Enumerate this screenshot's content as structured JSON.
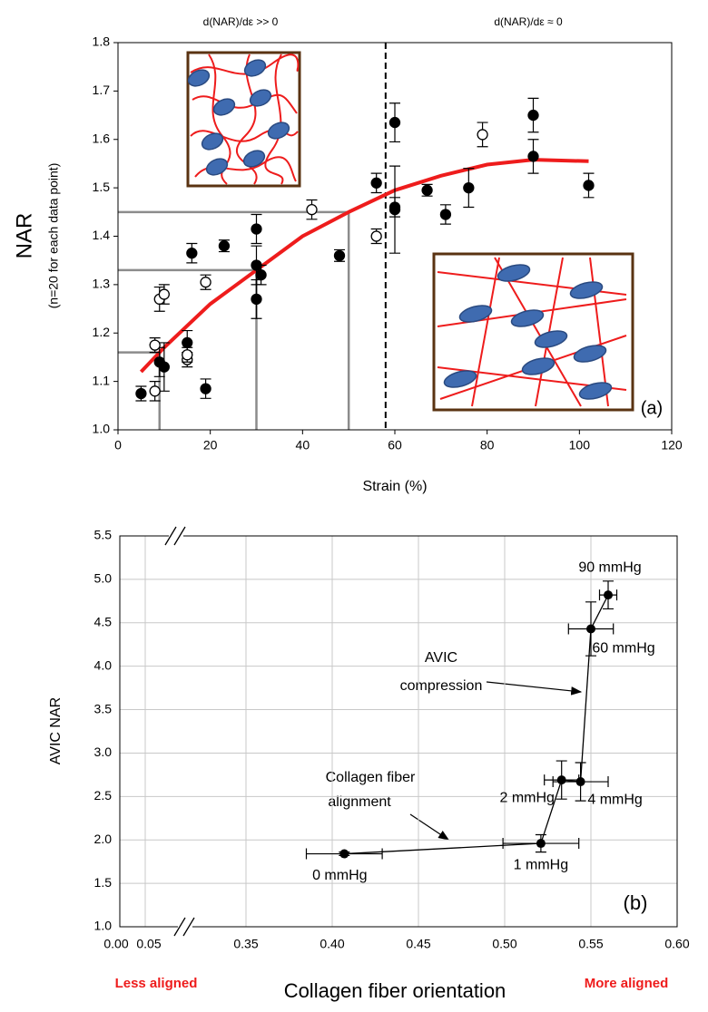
{
  "chart_data": [
    {
      "type": "scatter",
      "xlabel": "Strain (%)",
      "ylabel": "NAR",
      "ylabel_sub": "(n=20 for each data point)",
      "panel_label": "(a)",
      "annotations": [
        "d(NAR)/dε >> 0",
        "d(NAR)/dε ≈ 0"
      ],
      "xlim": [
        0,
        120
      ],
      "xticks": [
        0,
        20,
        40,
        60,
        80,
        100,
        120
      ],
      "ylim": [
        1.0,
        1.8
      ],
      "yticks": [
        {
          "value": 1.0,
          "label": "1.0"
        },
        1.1,
        1.2,
        1.3,
        1.4,
        1.5,
        1.6,
        1.7,
        {
          "value": 1.8,
          "label": "1.8"
        }
      ],
      "series": [
        {
          "marker": "filled",
          "color": "#000000",
          "x": [
            5,
            9,
            10,
            15,
            16,
            19,
            23,
            30,
            30,
            30,
            31,
            48,
            56,
            60,
            60,
            60,
            67,
            71,
            76,
            90,
            90,
            102
          ],
          "values": [
            1.075,
            1.14,
            1.13,
            1.18,
            1.365,
            1.085,
            1.38,
            1.415,
            1.34,
            1.27,
            1.32,
            1.36,
            1.51,
            1.635,
            1.46,
            1.455,
            1.495,
            1.445,
            1.5,
            1.65,
            1.565,
            1.505
          ],
          "errors": [
            0.015,
            0.03,
            0.05,
            0.025,
            0.02,
            0.02,
            0.012,
            0.03,
            0.04,
            0.04,
            0.02,
            0.012,
            0.02,
            0.04,
            0.02,
            0.09,
            0.012,
            0.02,
            0.04,
            0.035,
            0.035,
            0.025
          ]
        },
        {
          "marker": "open",
          "color": "#000000",
          "x": [
            8,
            8,
            9,
            10,
            15,
            15,
            19,
            42,
            56,
            79
          ],
          "values": [
            1.175,
            1.08,
            1.27,
            1.28,
            1.145,
            1.155,
            1.305,
            1.455,
            1.4,
            1.61
          ],
          "errors": [
            0.015,
            0.02,
            0.025,
            0.02,
            0.015,
            0.015,
            0.015,
            0.02,
            0.015,
            0.025
          ]
        }
      ],
      "fit": {
        "color": "#ee1c1c",
        "x": [
          5,
          10,
          20,
          30,
          40,
          50,
          60,
          70,
          80,
          90,
          102
        ],
        "values": [
          1.12,
          1.17,
          1.26,
          1.33,
          1.4,
          1.45,
          1.495,
          1.525,
          1.548,
          1.558,
          1.555
        ]
      },
      "guides": {
        "color": "#8c8c8c",
        "x": [
          9,
          30,
          50
        ],
        "values": [
          1.16,
          1.33,
          1.45
        ]
      },
      "vline": 58
    },
    {
      "type": "line",
      "xlabel": "Collagen fiber orientation",
      "ylabel": "AVIC NAR",
      "panel_label": "(b)",
      "xlabel_left": "Less aligned",
      "xlabel_right": "More aligned",
      "annotations": [
        [
          "AVIC",
          "compression"
        ],
        [
          "Collagen fiber",
          "alignment"
        ]
      ],
      "xlim": [
        0,
        0.6
      ],
      "xbreak": [
        0.05,
        0.35
      ],
      "xticks": [
        {
          "value": 0,
          "label": "0.00"
        },
        {
          "value": 0.05,
          "label": "0.05"
        },
        0.35,
        {
          "value": 0.4,
          "label": "0.40"
        },
        0.45,
        {
          "value": 0.5,
          "label": "0.50"
        },
        0.55,
        {
          "value": 0.6,
          "label": "0.60"
        }
      ],
      "ylim": [
        1.0,
        5.5
      ],
      "yticks": [
        {
          "value": 1.0,
          "label": "1.0"
        },
        1.5,
        {
          "value": 2.0,
          "label": "2.0"
        },
        2.5,
        {
          "value": 3.0,
          "label": "3.0"
        },
        3.5,
        {
          "value": 4.0,
          "label": "4.0"
        },
        4.5,
        {
          "value": 5.0,
          "label": "5.0"
        },
        5.5
      ],
      "grid": true,
      "color": "#000000",
      "labels": [
        "0 mmHg",
        "1 mmHg",
        "2 mmHg",
        "4 mmHg",
        "60 mmHg",
        "90 mmHg"
      ],
      "x": [
        0.407,
        0.521,
        0.533,
        0.544,
        0.55,
        0.56
      ],
      "xerrors": [
        0.022,
        0.022,
        0.01,
        0.016,
        0.013,
        0.005
      ],
      "values": [
        1.84,
        1.96,
        2.69,
        2.67,
        4.43,
        4.82
      ],
      "errors": [
        0.02,
        0.1,
        0.22,
        0.22,
        0.31,
        0.16
      ]
    }
  ]
}
